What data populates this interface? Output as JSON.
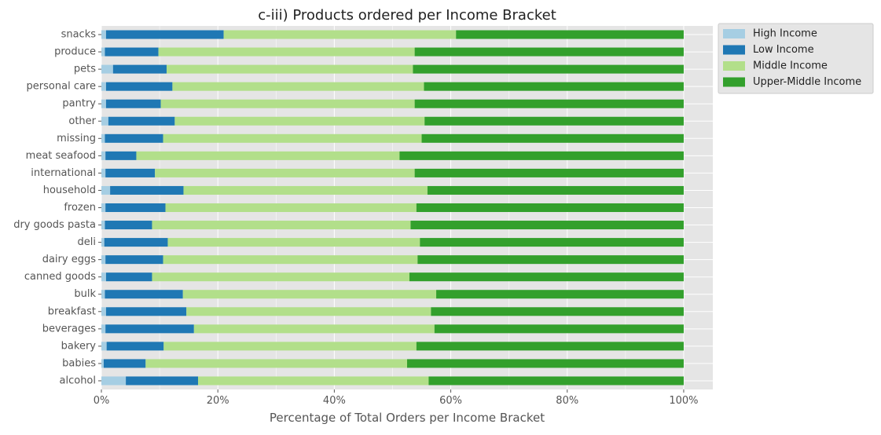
{
  "chart_data": {
    "type": "bar",
    "orientation": "horizontal",
    "stacked": true,
    "title": "c-iii) Products ordered per Income Bracket",
    "xlabel": "Percentage of Total Orders per Income Bracket",
    "ylabel": "",
    "xlim": [
      0,
      105
    ],
    "x_ticks": [
      0,
      20,
      40,
      60,
      80,
      100
    ],
    "x_tick_labels": [
      "0%",
      "20%",
      "40%",
      "60%",
      "80%",
      "100%"
    ],
    "grid": true,
    "legend_position": "outside-top-right",
    "categories": [
      "snacks",
      "produce",
      "pets",
      "personal care",
      "pantry",
      "other",
      "missing",
      "meat seafood",
      "international",
      "household",
      "frozen",
      "dry goods pasta",
      "deli",
      "dairy eggs",
      "canned goods",
      "bulk",
      "breakfast",
      "beverages",
      "bakery",
      "babies",
      "alcohol"
    ],
    "series": [
      {
        "name": "High Income",
        "color": "#a6cee3",
        "values": [
          0.8,
          0.6,
          2.0,
          0.8,
          0.8,
          1.2,
          0.6,
          0.7,
          0.7,
          1.5,
          0.7,
          0.6,
          0.5,
          0.7,
          0.8,
          0.6,
          0.8,
          0.7,
          0.9,
          0.4,
          4.2
        ]
      },
      {
        "name": "Low Income",
        "color": "#1f78b4",
        "values": [
          20.2,
          9.2,
          9.2,
          11.4,
          9.4,
          11.4,
          10.0,
          5.3,
          8.5,
          12.6,
          10.3,
          8.1,
          10.9,
          9.9,
          7.9,
          13.4,
          13.8,
          15.2,
          9.8,
          7.2,
          12.4
        ]
      },
      {
        "name": "Middle Income",
        "color": "#b2df8a",
        "values": [
          39.9,
          44.0,
          42.3,
          43.2,
          43.6,
          42.9,
          44.4,
          45.2,
          44.6,
          41.9,
          43.1,
          44.4,
          43.3,
          43.7,
          44.2,
          43.5,
          42.0,
          41.3,
          43.4,
          44.9,
          39.6
        ]
      },
      {
        "name": "Upper-Middle Income",
        "color": "#33a02c",
        "values": [
          39.1,
          46.2,
          46.5,
          44.6,
          46.2,
          44.5,
          45.0,
          48.8,
          46.2,
          44.0,
          45.9,
          46.9,
          45.3,
          45.7,
          47.1,
          42.5,
          43.4,
          42.8,
          45.9,
          47.5,
          43.8
        ]
      }
    ]
  }
}
